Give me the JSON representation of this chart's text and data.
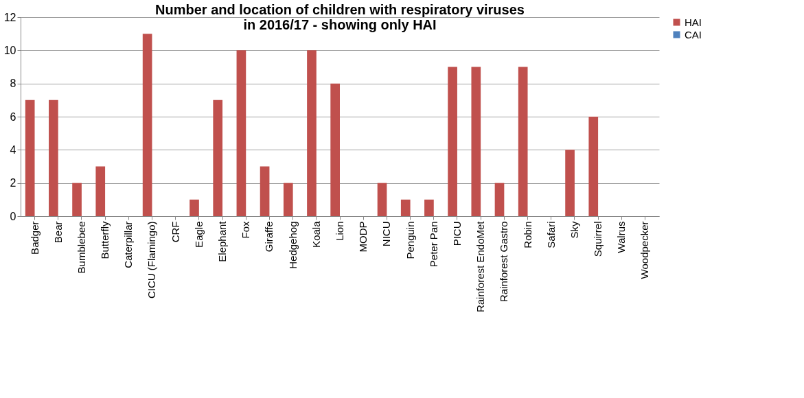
{
  "chart_data": {
    "type": "bar",
    "title": "Number and location of children with respiratory viruses\nin 2016/17 - showing only HAI",
    "categories": [
      "Badger",
      "Bear",
      "Bumblebee",
      "Butterfly",
      "Caterpillar",
      "CICU (Flamingo)",
      "CRF",
      "Eagle",
      "Elephant",
      "Fox",
      "Giraffe",
      "Hedgehog",
      "Koala",
      "Lion",
      "MODP",
      "NICU",
      "Penguin",
      "Peter Pan",
      "PICU",
      "Rainforest EndoMet",
      "Rainforest Gastro",
      "Robin",
      "Safari",
      "Sky",
      "Squirrel",
      "Walrus",
      "Woodpecker"
    ],
    "series": [
      {
        "name": "HAI",
        "color": "#c0504d",
        "values": [
          7,
          7,
          2,
          3,
          0,
          11,
          0,
          1,
          7,
          10,
          3,
          2,
          10,
          8,
          0,
          2,
          1,
          1,
          9,
          9,
          2,
          9,
          0,
          4,
          6,
          0,
          0
        ]
      },
      {
        "name": "CAI",
        "color": "#4f81bd",
        "values": [
          0,
          0,
          0,
          0,
          0,
          0,
          0,
          0,
          0,
          0,
          0,
          0,
          0,
          0,
          0,
          0,
          0,
          0,
          0,
          0,
          0,
          0,
          0,
          0,
          0,
          0,
          0
        ]
      }
    ],
    "ylim": [
      0,
      12
    ],
    "yticks": [
      0,
      2,
      4,
      6,
      8,
      10,
      12
    ],
    "grid": "y",
    "legend": "right"
  }
}
